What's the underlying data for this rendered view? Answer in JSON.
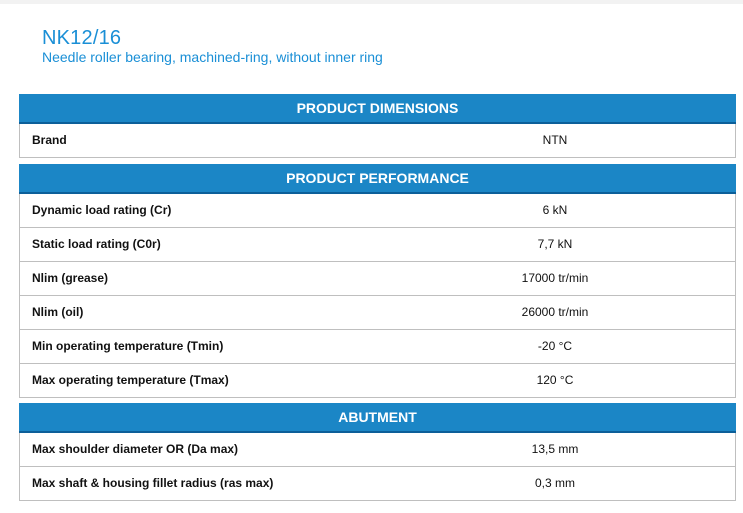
{
  "product": {
    "name": "NK12/16",
    "description": "Needle roller bearing, machined-ring, without inner ring"
  },
  "sections": [
    {
      "title": "PRODUCT DIMENSIONS",
      "rows": [
        {
          "label": "Brand",
          "value": "NTN"
        }
      ]
    },
    {
      "title": "PRODUCT PERFORMANCE",
      "rows": [
        {
          "label": "Dynamic load rating (Cr)",
          "value": "6 kN"
        },
        {
          "label": "Static load rating (C0r)",
          "value": "7,7 kN"
        },
        {
          "label": "Nlim (grease)",
          "value": "17000 tr/min"
        },
        {
          "label": "Nlim (oil)",
          "value": "26000 tr/min"
        },
        {
          "label": "Min operating temperature (Tmin)",
          "value": "-20 °C"
        },
        {
          "label": "Max operating temperature (Tmax)",
          "value": "120 °C"
        }
      ]
    },
    {
      "title": "ABUTMENT",
      "rows": [
        {
          "label": "Max shoulder diameter OR (Da max)",
          "value": "13,5 mm"
        },
        {
          "label": "Max shaft & housing fillet radius (ras max)",
          "value": "0,3 mm"
        }
      ]
    }
  ],
  "colors": {
    "accent": "#1a8fd6",
    "header_bg": "#1b86c6",
    "header_border": "#0c5f99",
    "row_border": "#bfbfbf"
  }
}
